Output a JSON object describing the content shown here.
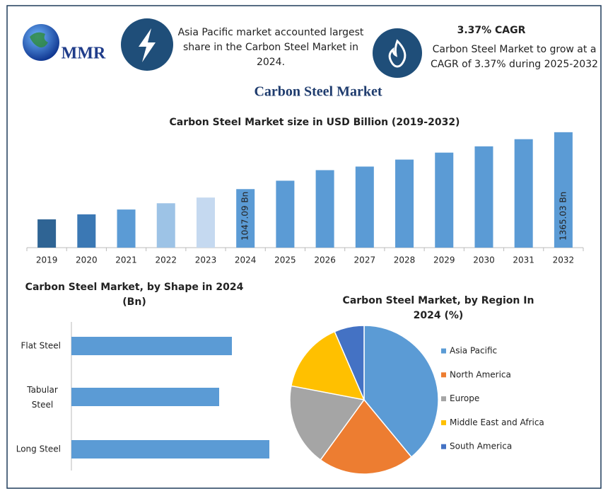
{
  "header": {
    "logo": "MMR",
    "highlight_1": "Asia Pacific market accounted largest share in the Carbon Steel Market in 2024.",
    "highlight_2_title": "3.37% CAGR",
    "highlight_2": "Carbon Steel Market to grow at a CAGR of 3.37% during 2025-2032",
    "title": "Carbon Steel Market"
  },
  "chart_data": [
    {
      "type": "bar",
      "title": "Carbon Steel Market size in USD Billion (2019-2032)",
      "categories": [
        "2019",
        "2020",
        "2021",
        "2022",
        "2023",
        "2024",
        "2025",
        "2026",
        "2027",
        "2028",
        "2029",
        "2030",
        "2031",
        "2032"
      ],
      "values": [
        878,
        906,
        933,
        968,
        1000,
        1047.09,
        1094,
        1153,
        1173,
        1212,
        1251,
        1286,
        1326,
        1365.03
      ],
      "value_labels": [
        null,
        null,
        null,
        null,
        null,
        "1047.09 Bn",
        null,
        null,
        null,
        null,
        null,
        null,
        null,
        "1365.03 Bn"
      ],
      "colors": [
        "#2f6494",
        "#3b78b4",
        "#5b9bd5",
        "#9dc3e6",
        "#c5d9f0",
        "#5b9bd5",
        "#5b9bd5",
        "#5b9bd5",
        "#5b9bd5",
        "#5b9bd5",
        "#5b9bd5",
        "#5b9bd5",
        "#5b9bd5",
        "#5b9bd5"
      ],
      "ylim": [
        720,
        1400
      ]
    },
    {
      "type": "barh",
      "title": "Carbon Steel Market, by Shape in 2024 (Bn)",
      "categories": [
        "Flat Steel",
        "Tabular Steel",
        "Long Steel"
      ],
      "values": [
        227,
        209,
        280
      ],
      "color": "#5b9bd5",
      "xlim": [
        0,
        300
      ]
    },
    {
      "type": "pie",
      "title": "Carbon Steel Market, by Region In 2024 (%)",
      "labels": [
        "Asia Pacific",
        "North America",
        "Europe",
        "Middle East and Africa",
        "South America"
      ],
      "values": [
        39,
        21,
        18,
        15.5,
        6.5
      ],
      "colors": [
        "#5b9bd5",
        "#ed7d31",
        "#a5a5a5",
        "#ffc000",
        "#4472c4"
      ]
    }
  ]
}
